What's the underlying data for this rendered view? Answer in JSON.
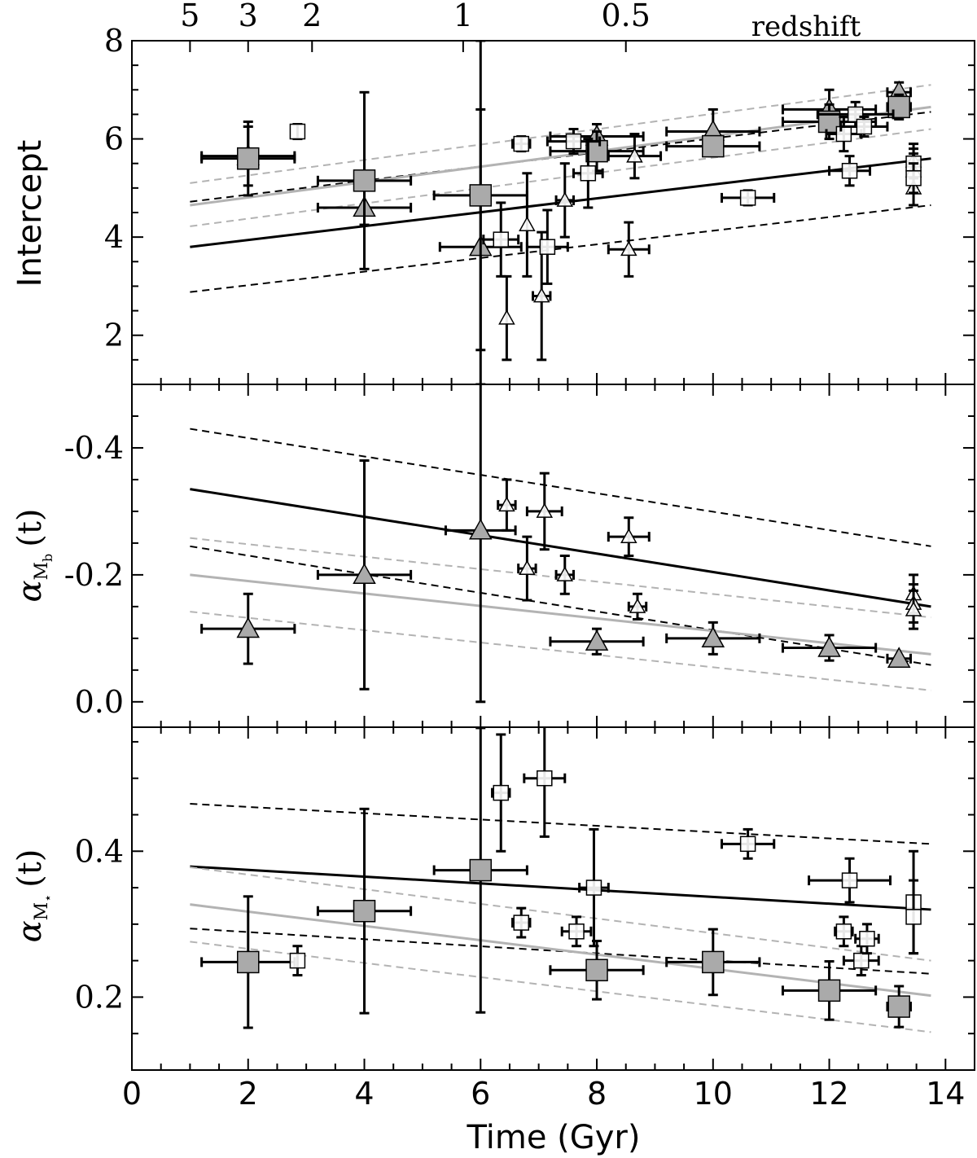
{
  "figure": {
    "xlabel": "Time (Gyr)",
    "top_axis_label": "redshift",
    "colors": {
      "ink": "#000000",
      "gray_fill": "#aaaaaa",
      "gray_line": "#b3b3b3",
      "white_fill": "#ffffff"
    }
  },
  "chart_data": [
    {
      "type": "scatter",
      "panel": "top",
      "ylabel": "Intercept",
      "xlim": [
        0,
        14.5
      ],
      "ylim": [
        1,
        8
      ],
      "x_ticks": [
        0,
        2,
        4,
        6,
        8,
        10,
        12,
        14
      ],
      "y_ticks": [
        2,
        4,
        6,
        8
      ],
      "redshift_ticks": [
        {
          "label": "5",
          "t": 1.0
        },
        {
          "label": "3",
          "t": 2.0
        },
        {
          "label": "2",
          "t": 3.1
        },
        {
          "label": "1",
          "t": 5.7
        },
        {
          "label": "0.5",
          "t": 8.5
        }
      ],
      "series": [
        {
          "marker": "triangle-filled",
          "points": [
            {
              "x": 2.0,
              "y": 5.65,
              "xerr": 0.8,
              "yerr": 0.6
            },
            {
              "x": 4.0,
              "y": 4.6,
              "xerr": 0.8,
              "yerr": 0.35
            },
            {
              "x": 6.0,
              "y": 3.8,
              "xerr": 0.7,
              "yerr": 2.8
            },
            {
              "x": 8.0,
              "y": 6.05,
              "xerr": 0.8,
              "yerr": 0.25
            },
            {
              "x": 10.0,
              "y": 6.15,
              "xerr": 0.8,
              "yerr": 0.45
            },
            {
              "x": 12.0,
              "y": 6.6,
              "xerr": 0.8,
              "yerr": 0.4
            },
            {
              "x": 13.2,
              "y": 6.95,
              "xerr": 0.2,
              "yerr": 0.2
            }
          ]
        },
        {
          "marker": "square-filled",
          "points": [
            {
              "x": 2.0,
              "y": 5.6,
              "xerr": 0.8,
              "yerr": 0.75
            },
            {
              "x": 4.0,
              "y": 5.15,
              "xerr": 0.8,
              "yerr": 1.8
            },
            {
              "x": 6.0,
              "y": 4.85,
              "xerr": 0.8,
              "yerr": 3.15
            },
            {
              "x": 8.0,
              "y": 5.75,
              "xerr": 0.8,
              "yerr": 0.4
            },
            {
              "x": 10.0,
              "y": 5.85,
              "xerr": 0.8,
              "yerr": 0.2
            },
            {
              "x": 12.0,
              "y": 6.35,
              "xerr": 0.8,
              "yerr": 0.35
            },
            {
              "x": 13.2,
              "y": 6.65,
              "xerr": 0.2,
              "yerr": 0.25
            }
          ]
        },
        {
          "marker": "triangle-open",
          "points": [
            {
              "x": 6.45,
              "y": 2.35,
              "xerr": 0.0,
              "yerr": 0.85
            },
            {
              "x": 6.8,
              "y": 4.25,
              "xerr": 0.0,
              "yerr": 1.05
            },
            {
              "x": 7.05,
              "y": 2.8,
              "xerr": 0.15,
              "yerr": 1.3
            },
            {
              "x": 7.45,
              "y": 4.75,
              "xerr": 0.15,
              "yerr": 0.75
            },
            {
              "x": 8.55,
              "y": 3.75,
              "xerr": 0.35,
              "yerr": 0.55
            },
            {
              "x": 8.65,
              "y": 5.65,
              "xerr": 0.45,
              "yerr": 0.45
            },
            {
              "x": 13.45,
              "y": 5.55,
              "xerr": 0.0,
              "yerr": 0.35
            },
            {
              "x": 13.45,
              "y": 5.35,
              "xerr": 0.0,
              "yerr": 0.35
            },
            {
              "x": 13.45,
              "y": 5.0,
              "xerr": 0.0,
              "yerr": 0.35
            }
          ]
        },
        {
          "marker": "square-open",
          "points": [
            {
              "x": 2.85,
              "y": 6.15,
              "xerr": 0.0,
              "yerr": 0.15
            },
            {
              "x": 6.35,
              "y": 3.95,
              "xerr": 0.3,
              "yerr": 0.75
            },
            {
              "x": 6.7,
              "y": 5.9,
              "xerr": 0.15,
              "yerr": 0.15
            },
            {
              "x": 7.15,
              "y": 3.8,
              "xerr": 0.35,
              "yerr": 0.75
            },
            {
              "x": 7.6,
              "y": 5.95,
              "xerr": 0.45,
              "yerr": 0.25
            },
            {
              "x": 7.85,
              "y": 5.3,
              "xerr": 0.25,
              "yerr": 0.7
            },
            {
              "x": 10.6,
              "y": 4.8,
              "xerr": 0.45,
              "yerr": 0.15
            },
            {
              "x": 12.25,
              "y": 6.1,
              "xerr": 0.3,
              "yerr": 0.35
            },
            {
              "x": 12.35,
              "y": 5.35,
              "xerr": 0.35,
              "yerr": 0.3
            },
            {
              "x": 12.45,
              "y": 6.5,
              "xerr": 0.65,
              "yerr": 0.25
            },
            {
              "x": 12.6,
              "y": 6.25,
              "xerr": 0.4,
              "yerr": 0.2
            },
            {
              "x": 13.45,
              "y": 5.5,
              "xerr": 0.0,
              "yerr": 0.3
            },
            {
              "x": 13.45,
              "y": 5.2,
              "xerr": 0.0,
              "yerr": 0.3
            }
          ]
        }
      ],
      "fits": [
        {
          "style": "black-solid",
          "x": [
            1,
            13.75
          ],
          "y": [
            3.8,
            5.6
          ]
        },
        {
          "style": "black-dashed",
          "x": [
            1,
            13.75
          ],
          "y": [
            4.72,
            6.55
          ]
        },
        {
          "style": "black-dashed",
          "x": [
            1,
            13.75
          ],
          "y": [
            2.88,
            4.65
          ]
        },
        {
          "style": "gray-solid",
          "x": [
            1,
            13.75
          ],
          "y": [
            4.65,
            6.65
          ]
        },
        {
          "style": "gray-dashed",
          "x": [
            1,
            13.75
          ],
          "y": [
            5.1,
            7.1
          ]
        },
        {
          "style": "gray-dashed",
          "x": [
            1,
            13.75
          ],
          "y": [
            4.22,
            6.2
          ]
        }
      ]
    },
    {
      "type": "scatter",
      "panel": "middle",
      "ylabel": "α_M_b (t)",
      "ylabel_main": "α",
      "ylabel_sub": "M",
      "ylabel_subsub": "b",
      "ylabel_arg": "(t)",
      "inverted_y": true,
      "xlim": [
        0,
        14.5
      ],
      "ylim": [
        0.04,
        -0.5
      ],
      "y_ticks": [
        -0.4,
        -0.2,
        0.0
      ],
      "y_tick_labels": [
        "-0.4",
        "-0.2",
        "0.0"
      ],
      "series": [
        {
          "marker": "triangle-filled",
          "points": [
            {
              "x": 2.0,
              "y": -0.115,
              "xerr": 0.8,
              "yerr": 0.055
            },
            {
              "x": 4.0,
              "y": -0.2,
              "xerr": 0.8,
              "yerr": 0.18
            },
            {
              "x": 6.0,
              "y": -0.27,
              "xerr": 0.6,
              "yerr": 0.27
            },
            {
              "x": 8.0,
              "y": -0.095,
              "xerr": 0.8,
              "yerr": 0.02
            },
            {
              "x": 10.0,
              "y": -0.1,
              "xerr": 0.8,
              "yerr": 0.025
            },
            {
              "x": 12.0,
              "y": -0.085,
              "xerr": 0.8,
              "yerr": 0.02
            },
            {
              "x": 13.2,
              "y": -0.068,
              "xerr": 0.2,
              "yerr": 0.0
            }
          ]
        },
        {
          "marker": "triangle-open",
          "points": [
            {
              "x": 6.45,
              "y": -0.31,
              "xerr": 0.15,
              "yerr": 0.04
            },
            {
              "x": 6.8,
              "y": -0.21,
              "xerr": 0.15,
              "yerr": 0.05
            },
            {
              "x": 7.1,
              "y": -0.3,
              "xerr": 0.3,
              "yerr": 0.06
            },
            {
              "x": 7.45,
              "y": -0.2,
              "xerr": 0.15,
              "yerr": 0.03
            },
            {
              "x": 8.55,
              "y": -0.26,
              "xerr": 0.35,
              "yerr": 0.03
            },
            {
              "x": 8.7,
              "y": -0.15,
              "xerr": 0.15,
              "yerr": 0.02
            },
            {
              "x": 13.45,
              "y": -0.17,
              "xerr": 0.0,
              "yerr": 0.03
            },
            {
              "x": 13.45,
              "y": -0.155,
              "xerr": 0.0,
              "yerr": 0.03
            },
            {
              "x": 13.45,
              "y": -0.145,
              "xerr": 0.0,
              "yerr": 0.03
            }
          ]
        }
      ],
      "fits": [
        {
          "style": "black-solid",
          "x": [
            1,
            13.75
          ],
          "y": [
            -0.335,
            -0.15
          ]
        },
        {
          "style": "black-dashed",
          "x": [
            1,
            13.75
          ],
          "y": [
            -0.43,
            -0.245
          ]
        },
        {
          "style": "black-dashed",
          "x": [
            1,
            13.75
          ],
          "y": [
            -0.245,
            -0.058
          ]
        },
        {
          "style": "gray-solid",
          "x": [
            1,
            13.75
          ],
          "y": [
            -0.2,
            -0.075
          ]
        },
        {
          "style": "gray-dashed",
          "x": [
            1,
            13.75
          ],
          "y": [
            -0.258,
            -0.133
          ]
        },
        {
          "style": "gray-dashed",
          "x": [
            1,
            13.75
          ],
          "y": [
            -0.142,
            -0.018
          ]
        }
      ]
    },
    {
      "type": "scatter",
      "panel": "bottom",
      "ylabel": "α_M⋆ (t)",
      "ylabel_main": "α",
      "ylabel_sub": "M",
      "ylabel_subsub": "⋆",
      "ylabel_arg": "(t)",
      "xlim": [
        0,
        14.5
      ],
      "ylim": [
        0.1,
        0.57
      ],
      "y_ticks": [
        0.2,
        0.4
      ],
      "y_tick_labels": [
        "0.2",
        "0.4"
      ],
      "x_ticks": [
        0,
        2,
        4,
        6,
        8,
        10,
        12,
        14
      ],
      "x_tick_labels": [
        "0",
        "2",
        "4",
        "6",
        "8",
        "10",
        "12",
        "14"
      ],
      "series": [
        {
          "marker": "square-filled",
          "points": [
            {
              "x": 2.0,
              "y": 0.248,
              "xerr": 0.8,
              "yerr": 0.09
            },
            {
              "x": 4.0,
              "y": 0.318,
              "xerr": 0.8,
              "yerr": 0.14
            },
            {
              "x": 6.0,
              "y": 0.374,
              "xerr": 0.8,
              "yerr": 0.195
            },
            {
              "x": 8.0,
              "y": 0.237,
              "xerr": 0.8,
              "yerr": 0.04
            },
            {
              "x": 10.0,
              "y": 0.248,
              "xerr": 0.8,
              "yerr": 0.045
            },
            {
              "x": 12.0,
              "y": 0.209,
              "xerr": 0.8,
              "yerr": 0.04
            },
            {
              "x": 13.2,
              "y": 0.187,
              "xerr": 0.2,
              "yerr": 0.028
            }
          ]
        },
        {
          "marker": "square-open",
          "points": [
            {
              "x": 2.85,
              "y": 0.25,
              "xerr": 0.0,
              "yerr": 0.02
            },
            {
              "x": 6.35,
              "y": 0.48,
              "xerr": 0.15,
              "yerr": 0.08
            },
            {
              "x": 6.7,
              "y": 0.302,
              "xerr": 0.15,
              "yerr": 0.02
            },
            {
              "x": 7.1,
              "y": 0.5,
              "xerr": 0.35,
              "yerr": 0.08
            },
            {
              "x": 7.65,
              "y": 0.29,
              "xerr": 0.25,
              "yerr": 0.02
            },
            {
              "x": 7.95,
              "y": 0.35,
              "xerr": 0.25,
              "yerr": 0.08
            },
            {
              "x": 10.6,
              "y": 0.41,
              "xerr": 0.45,
              "yerr": 0.02
            },
            {
              "x": 12.25,
              "y": 0.29,
              "xerr": 0.15,
              "yerr": 0.02
            },
            {
              "x": 12.35,
              "y": 0.36,
              "xerr": 0.7,
              "yerr": 0.03
            },
            {
              "x": 12.55,
              "y": 0.25,
              "xerr": 0.3,
              "yerr": 0.02
            },
            {
              "x": 12.65,
              "y": 0.28,
              "xerr": 0.2,
              "yerr": 0.02
            },
            {
              "x": 13.45,
              "y": 0.33,
              "xerr": 0.0,
              "yerr": 0.07
            },
            {
              "x": 13.45,
              "y": 0.31,
              "xerr": 0.0,
              "yerr": 0.05
            }
          ]
        }
      ],
      "fits": [
        {
          "style": "black-solid",
          "x": [
            1,
            13.75
          ],
          "y": [
            0.379,
            0.32
          ]
        },
        {
          "style": "black-dashed",
          "x": [
            1,
            13.75
          ],
          "y": [
            0.465,
            0.41
          ]
        },
        {
          "style": "black-dashed",
          "x": [
            1,
            13.75
          ],
          "y": [
            0.294,
            0.232
          ]
        },
        {
          "style": "gray-solid",
          "x": [
            1,
            13.75
          ],
          "y": [
            0.327,
            0.202
          ]
        },
        {
          "style": "gray-dashed",
          "x": [
            1,
            13.75
          ],
          "y": [
            0.378,
            0.25
          ]
        },
        {
          "style": "gray-dashed",
          "x": [
            1,
            13.75
          ],
          "y": [
            0.276,
            0.152
          ]
        }
      ]
    }
  ]
}
